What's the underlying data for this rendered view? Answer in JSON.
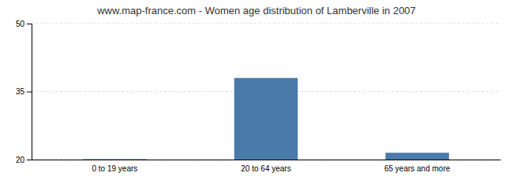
{
  "chart_data": {
    "type": "bar",
    "title": "www.map-france.com - Women age distribution of Lamberville in 2007",
    "categories": [
      "0 to 19 years",
      "20 to 64 years",
      "65 years and more"
    ],
    "values": [
      20.1,
      38,
      21.5
    ],
    "color": "#4a7aaa",
    "ylim": [
      20,
      50
    ],
    "yticks": [
      20,
      35,
      50
    ],
    "grid": true
  }
}
